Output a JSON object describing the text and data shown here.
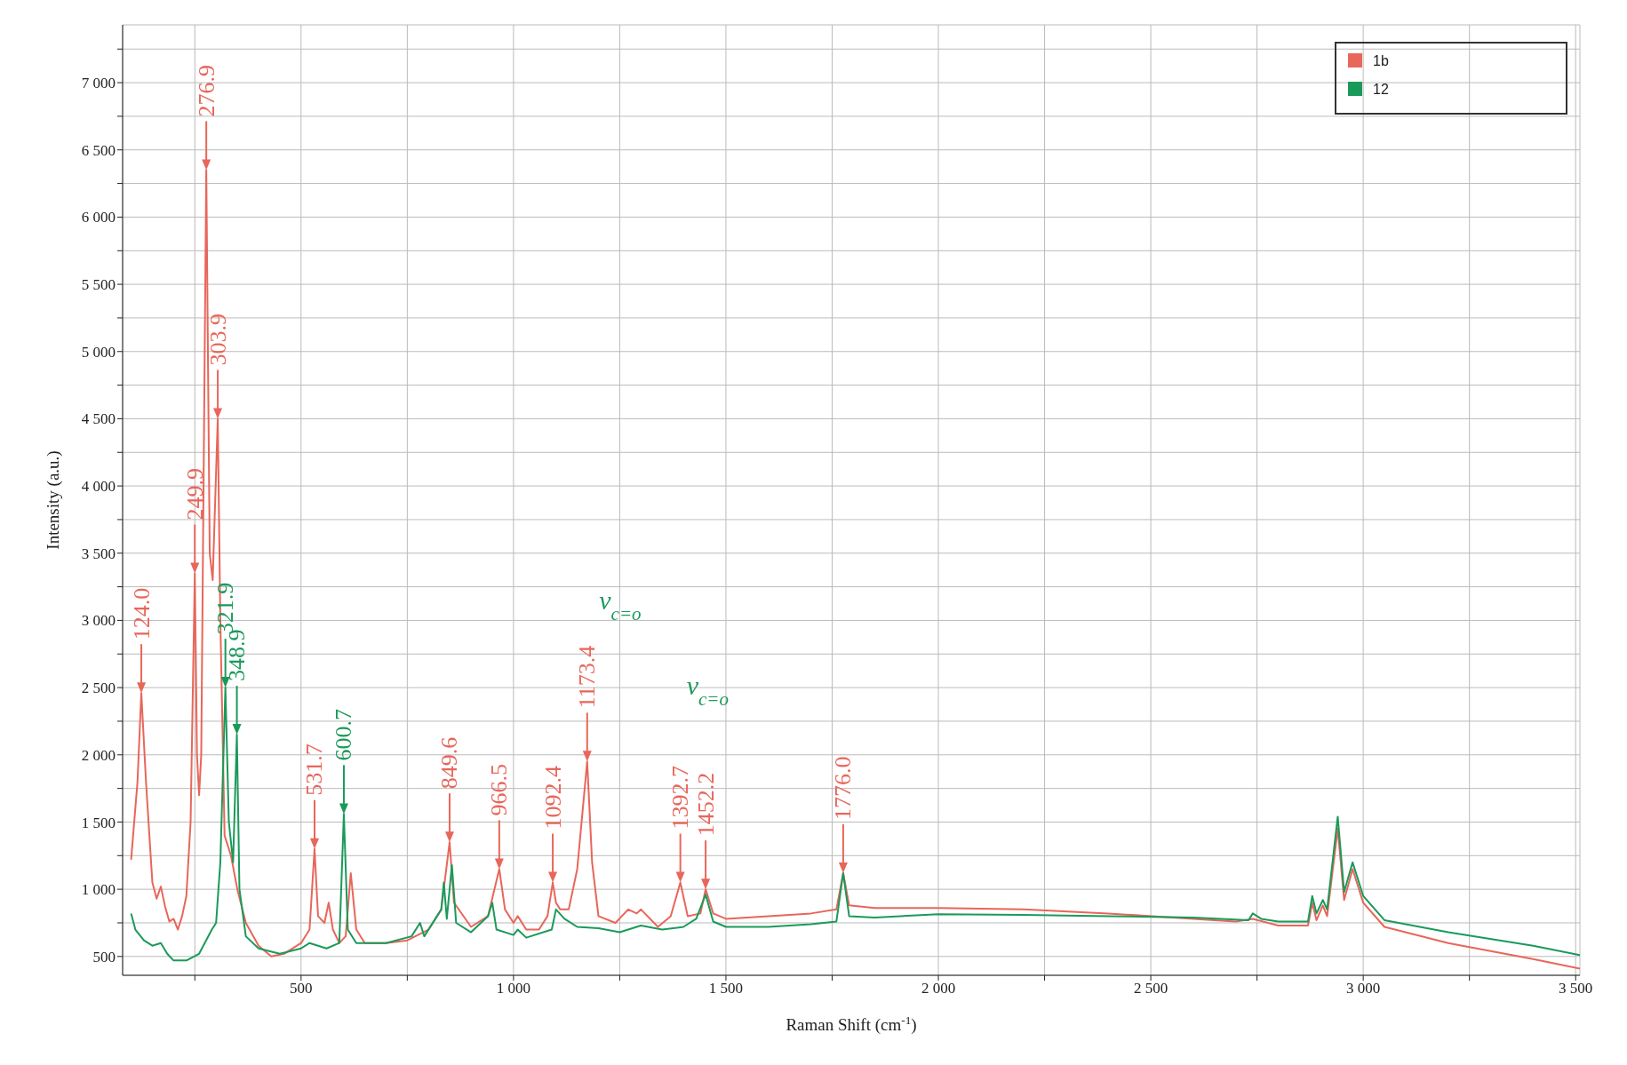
{
  "chart_data": {
    "type": "line",
    "xlabel": "Raman Shift (cm$^{-1}$)",
    "ylabel": "Intensity (a.u.)",
    "xlim": [
      80,
      3510
    ],
    "ylim": [
      360,
      7430
    ],
    "xticks": [
      {
        "value": 250,
        "label": null
      },
      500,
      {
        "value": 750,
        "label": null
      },
      {
        "value": 1000,
        "label": "1 000"
      },
      {
        "value": 1250,
        "label": null
      },
      {
        "value": 1500,
        "label": "1 500"
      },
      {
        "value": 1750,
        "label": null
      },
      {
        "value": 2000,
        "label": "2 000"
      },
      {
        "value": 2250,
        "label": null
      },
      {
        "value": 2500,
        "label": "2 500"
      },
      {
        "value": 2750,
        "label": null
      },
      {
        "value": 3000,
        "label": "3 000"
      },
      {
        "value": 3250,
        "label": null
      },
      {
        "value": 3500,
        "label": "3 500"
      }
    ],
    "yticks": [
      500,
      {
        "value": 750,
        "label": null
      },
      {
        "value": 1000,
        "label": "1 000"
      },
      {
        "value": 1250,
        "label": null
      },
      {
        "value": 1500,
        "label": "1 500"
      },
      {
        "value": 1750,
        "label": null
      },
      {
        "value": 2000,
        "label": "2 000"
      },
      {
        "value": 2250,
        "label": null
      },
      {
        "value": 2500,
        "label": "2 500"
      },
      {
        "value": 2750,
        "label": null
      },
      {
        "value": 3000,
        "label": "3 000"
      },
      {
        "value": 3250,
        "label": null
      },
      {
        "value": 3500,
        "label": "3 500"
      },
      {
        "value": 3750,
        "label": null
      },
      {
        "value": 4000,
        "label": "4 000"
      },
      {
        "value": 4250,
        "label": null
      },
      {
        "value": 4500,
        "label": "4 500"
      },
      {
        "value": 4750,
        "label": null
      },
      {
        "value": 5000,
        "label": "5 000"
      },
      {
        "value": 5250,
        "label": null
      },
      {
        "value": 5500,
        "label": "5 500"
      },
      {
        "value": 5750,
        "label": null
      },
      {
        "value": 6000,
        "label": "6 000"
      },
      {
        "value": 6250,
        "label": null
      },
      {
        "value": 6500,
        "label": "6 500"
      },
      {
        "value": 6750,
        "label": null
      },
      {
        "value": 7000,
        "label": "7 000"
      },
      {
        "value": 7250,
        "label": null
      }
    ],
    "grid": true,
    "legend": "top right",
    "marker": "none",
    "line_style": "solid",
    "series": [
      {
        "name": "1b",
        "color": "#e8665a",
        "x": [
          100,
          115,
          124,
          135,
          150,
          160,
          170,
          180,
          190,
          200,
          210,
          220,
          230,
          240,
          249.9,
          255,
          260,
          265,
          276.9,
          285,
          292,
          303.9,
          310,
          320,
          335,
          350,
          370,
          400,
          430,
          460,
          500,
          520,
          531.7,
          540,
          555,
          565,
          575,
          590,
          605,
          617,
          630,
          650,
          700,
          750,
          800,
          830,
          849.6,
          860,
          900,
          940,
          966.5,
          980,
          1000,
          1010,
          1030,
          1060,
          1080,
          1092.4,
          1100,
          1110,
          1130,
          1150,
          1173.4,
          1185,
          1200,
          1240,
          1270,
          1290,
          1300,
          1340,
          1370,
          1392.7,
          1410,
          1440,
          1452.2,
          1470,
          1500,
          1600,
          1700,
          1760,
          1776,
          1790,
          1850,
          2000,
          2200,
          2400,
          2600,
          2700,
          2740,
          2800,
          2870,
          2880,
          2890,
          2905,
          2915,
          2940,
          2955,
          2975,
          3000,
          3050,
          3200,
          3400,
          3510
        ],
        "values": [
          1220,
          1800,
          2460,
          1800,
          1050,
          930,
          1020,
          870,
          760,
          780,
          700,
          800,
          950,
          1500,
          3350,
          2000,
          1700,
          2000,
          6350,
          3500,
          3300,
          4500,
          3000,
          1400,
          1250,
          1000,
          750,
          580,
          500,
          520,
          600,
          700,
          1300,
          800,
          750,
          900,
          700,
          600,
          650,
          1120,
          700,
          600,
          600,
          620,
          700,
          850,
          1350,
          900,
          720,
          800,
          1150,
          850,
          750,
          800,
          700,
          700,
          800,
          1050,
          900,
          850,
          850,
          1150,
          1950,
          1200,
          800,
          750,
          850,
          820,
          850,
          720,
          800,
          1050,
          800,
          820,
          1000,
          820,
          780,
          800,
          820,
          850,
          1120,
          880,
          860,
          860,
          850,
          820,
          780,
          760,
          780,
          730,
          730,
          900,
          770,
          880,
          800,
          1450,
          920,
          1150,
          900,
          720,
          600,
          480,
          410
        ]
      },
      {
        "name": "12",
        "color": "#1a9a5a",
        "x": [
          100,
          110,
          130,
          150,
          170,
          185,
          200,
          230,
          260,
          290,
          300,
          310,
          321.9,
          330,
          340,
          348.9,
          355,
          370,
          400,
          450,
          500,
          520,
          560,
          590,
          600.7,
          610,
          630,
          700,
          760,
          780,
          790,
          830,
          836,
          843,
          855,
          865,
          900,
          940,
          950,
          960,
          1000,
          1010,
          1030,
          1090,
          1100,
          1120,
          1150,
          1200,
          1250,
          1300,
          1350,
          1400,
          1430,
          1452.2,
          1470,
          1500,
          1600,
          1700,
          1760,
          1776,
          1790,
          1850,
          2000,
          2200,
          2400,
          2600,
          2730,
          2740,
          2760,
          2800,
          2870,
          2880,
          2890,
          2905,
          2915,
          2940,
          2955,
          2975,
          3000,
          3050,
          3200,
          3400,
          3510
        ],
        "values": [
          820,
          700,
          620,
          580,
          600,
          520,
          470,
          470,
          520,
          700,
          750,
          1200,
          2500,
          1500,
          1200,
          2150,
          1000,
          650,
          560,
          520,
          560,
          600,
          560,
          600,
          1560,
          700,
          600,
          600,
          650,
          750,
          650,
          850,
          1050,
          780,
          1180,
          750,
          680,
          800,
          900,
          700,
          660,
          700,
          640,
          700,
          850,
          780,
          720,
          710,
          680,
          730,
          700,
          720,
          780,
          960,
          760,
          720,
          720,
          740,
          760,
          1120,
          800,
          790,
          815,
          810,
          800,
          790,
          770,
          820,
          780,
          760,
          760,
          950,
          820,
          920,
          850,
          1540,
          980,
          1200,
          950,
          770,
          680,
          580,
          510
        ]
      }
    ],
    "annotations": [
      {
        "text": "124.0",
        "x": 124,
        "y": 2460
      },
      {
        "text": "249.9",
        "x": 249.9,
        "y": 3350
      },
      {
        "text": "276.9",
        "x": 276.9,
        "y": 6350
      },
      {
        "text": "303.9",
        "x": 303.9,
        "y": 4500
      },
      {
        "text": "321.9",
        "x": 321.9,
        "y": 2500
      },
      {
        "text": "348.9",
        "x": 348.9,
        "y": 2150
      },
      {
        "text": "531.7",
        "x": 531.7,
        "y": 1300
      },
      {
        "text": "600.7",
        "x": 600.7,
        "y": 1560
      },
      {
        "text": "849.6",
        "x": 849.6,
        "y": 1350
      },
      {
        "text": "966.5",
        "x": 966.5,
        "y": 1150
      },
      {
        "text": "1092.4",
        "x": 1092.4,
        "y": 1050
      },
      {
        "text": "1173.4",
        "x": 1173.4,
        "y": 1950
      },
      {
        "text": "1392.7",
        "x": 1392.7,
        "y": 1050
      },
      {
        "text": "1452.2",
        "x": 1452.2,
        "y": 1000
      },
      {
        "text": "1776.0",
        "x": 1776,
        "y": 1120
      },
      "ν$_{c=o}$",
      "ν$_{c=o}$"
    ]
  }
}
